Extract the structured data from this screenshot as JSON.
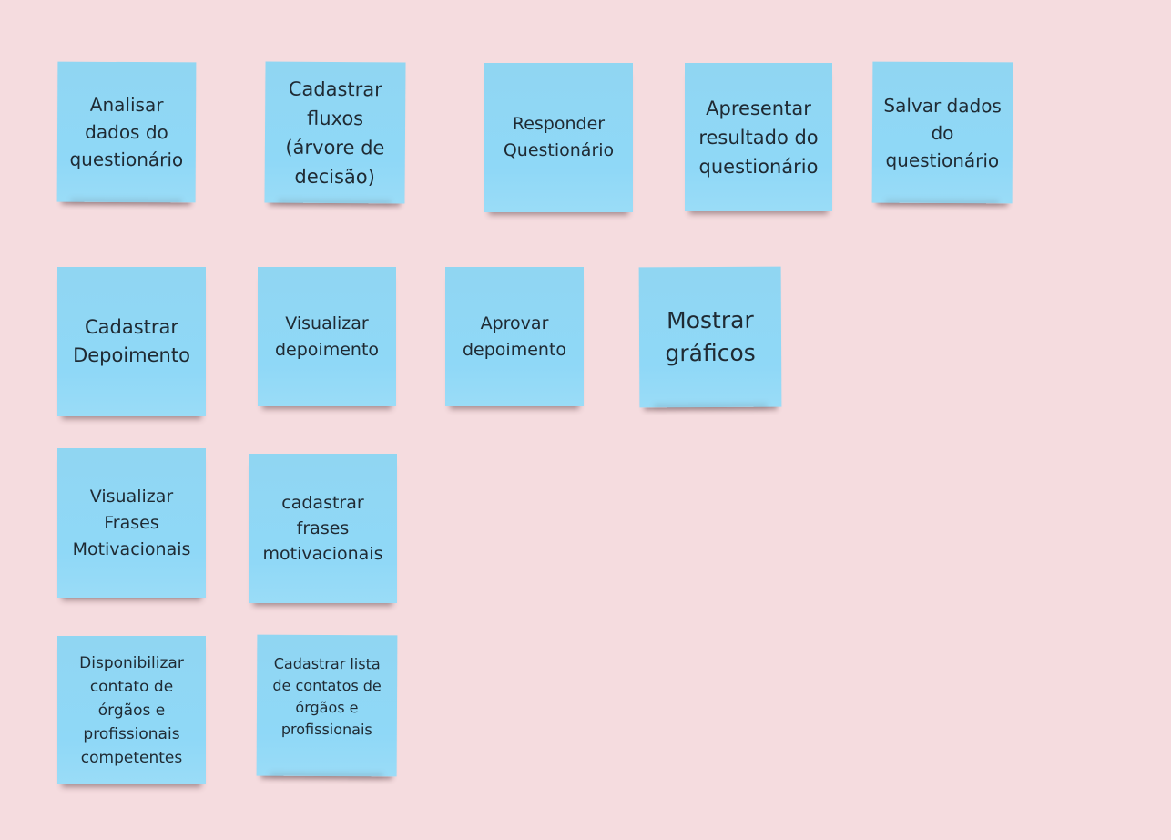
{
  "board": {
    "background": "#f5dcdf",
    "note_color": "#8fd8f7",
    "text_color": "#1f2a33",
    "notes": [
      {
        "id": "analisar-dados",
        "text": "Analisar\ndados do\nquestionário"
      },
      {
        "id": "cadastrar-fluxos",
        "text": "Cadastrar\nfluxos\n(árvore de\ndecisão)"
      },
      {
        "id": "responder-questionario",
        "text": "Responder\nQuestionário"
      },
      {
        "id": "apresentar-resultado",
        "text": "Apresentar\nresultado do\nquestionário"
      },
      {
        "id": "salvar-dados",
        "text": "Salvar dados\ndo\nquestionário"
      },
      {
        "id": "cadastrar-depoimento",
        "text": "Cadastrar\nDepoimento"
      },
      {
        "id": "visualizar-depoimento",
        "text": "Visualizar\ndepoimento"
      },
      {
        "id": "aprovar-depoimento",
        "text": "Aprovar\ndepoimento"
      },
      {
        "id": "mostrar-graficos",
        "text": "Mostrar\ngráficos"
      },
      {
        "id": "visualizar-frases",
        "text": "Visualizar\nFrases\nMotivacionais"
      },
      {
        "id": "cadastrar-frases",
        "text": "cadastrar\nfrases\nmotivacionais"
      },
      {
        "id": "disponibilizar-contato",
        "text": "Disponibilizar\ncontato de\nórgãos e\nprofissionais\ncompetentes"
      },
      {
        "id": "cadastrar-lista-contatos",
        "text": "Cadastrar lista\nde contatos de\nórgãos e\nprofissionais"
      }
    ]
  }
}
